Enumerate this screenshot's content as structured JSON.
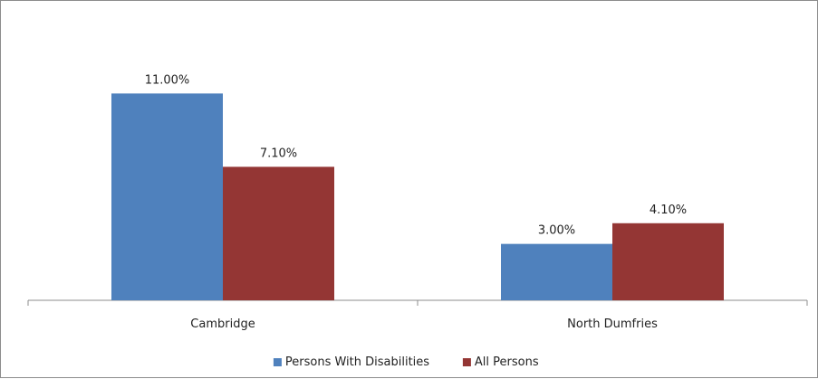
{
  "chart_data": {
    "type": "bar",
    "categories": [
      "Cambridge",
      "North Dumfries"
    ],
    "series": [
      {
        "name": "Persons With Disabilities",
        "values": [
          11.0,
          3.0
        ],
        "labels": [
          "11.00%",
          "3.00%"
        ],
        "color": "#4f81bd"
      },
      {
        "name": "All Persons",
        "values": [
          7.1,
          4.1
        ],
        "labels": [
          "7.10%",
          "4.10%"
        ],
        "color": "#943634"
      }
    ],
    "title": "",
    "xlabel": "",
    "ylabel": "",
    "ylim": [
      0,
      14
    ],
    "grid": false,
    "legend": "bottom"
  }
}
